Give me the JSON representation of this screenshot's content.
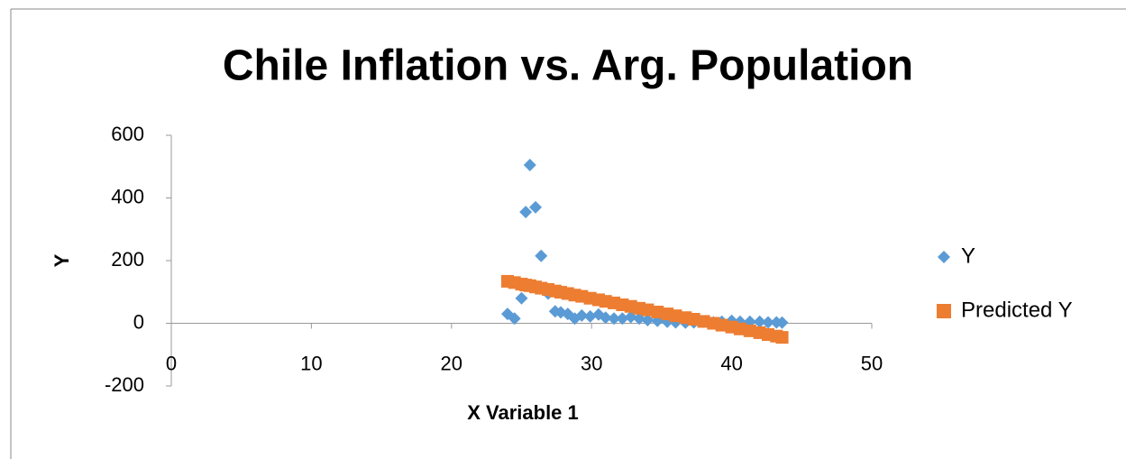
{
  "chart_data": {
    "type": "scatter",
    "title": "Chile Inflation vs. Arg. Population",
    "x_label": "X Variable 1",
    "y_label": "Y",
    "x": [
      24.0,
      24.5,
      25.0,
      25.3,
      25.6,
      26.0,
      26.4,
      26.9,
      27.4,
      27.8,
      28.3,
      28.8,
      29.3,
      29.9,
      30.5,
      31.0,
      31.6,
      32.2,
      32.8,
      33.4,
      34.0,
      34.7,
      35.4,
      36.0,
      36.7,
      37.3,
      38.0,
      38.7,
      39.3,
      40.0,
      40.6,
      41.3,
      42.0,
      42.6,
      43.2,
      43.6
    ],
    "series": [
      {
        "name": "Y",
        "color": "#5b9bd5",
        "marker": "diamond",
        "values": [
          30,
          15,
          80,
          355,
          505,
          370,
          215,
          95,
          38,
          35,
          30,
          15,
          25,
          22,
          28,
          18,
          15,
          15,
          20,
          15,
          10,
          8,
          5,
          3,
          2,
          3,
          5,
          3,
          5,
          8,
          5,
          5,
          5,
          3,
          3,
          2
        ]
      },
      {
        "name": "Predicted Y",
        "color": "#ed7d31",
        "marker": "square",
        "values": [
          134,
          130,
          125,
          122,
          120,
          116,
          112,
          108,
          103,
          99,
          95,
          90,
          86,
          80,
          75,
          70,
          65,
          59,
          54,
          48,
          43,
          36,
          30,
          24,
          18,
          13,
          6,
          0,
          -6,
          -12,
          -18,
          -24,
          -30,
          -36,
          -41,
          -45
        ]
      }
    ],
    "xlim": [
      0,
      50
    ],
    "xticks": [
      0,
      10,
      20,
      30,
      40,
      50
    ],
    "ylim": [
      -200,
      600
    ],
    "yticks": [
      -200,
      0,
      200,
      400,
      600
    ],
    "grid": false,
    "legend": "right"
  }
}
